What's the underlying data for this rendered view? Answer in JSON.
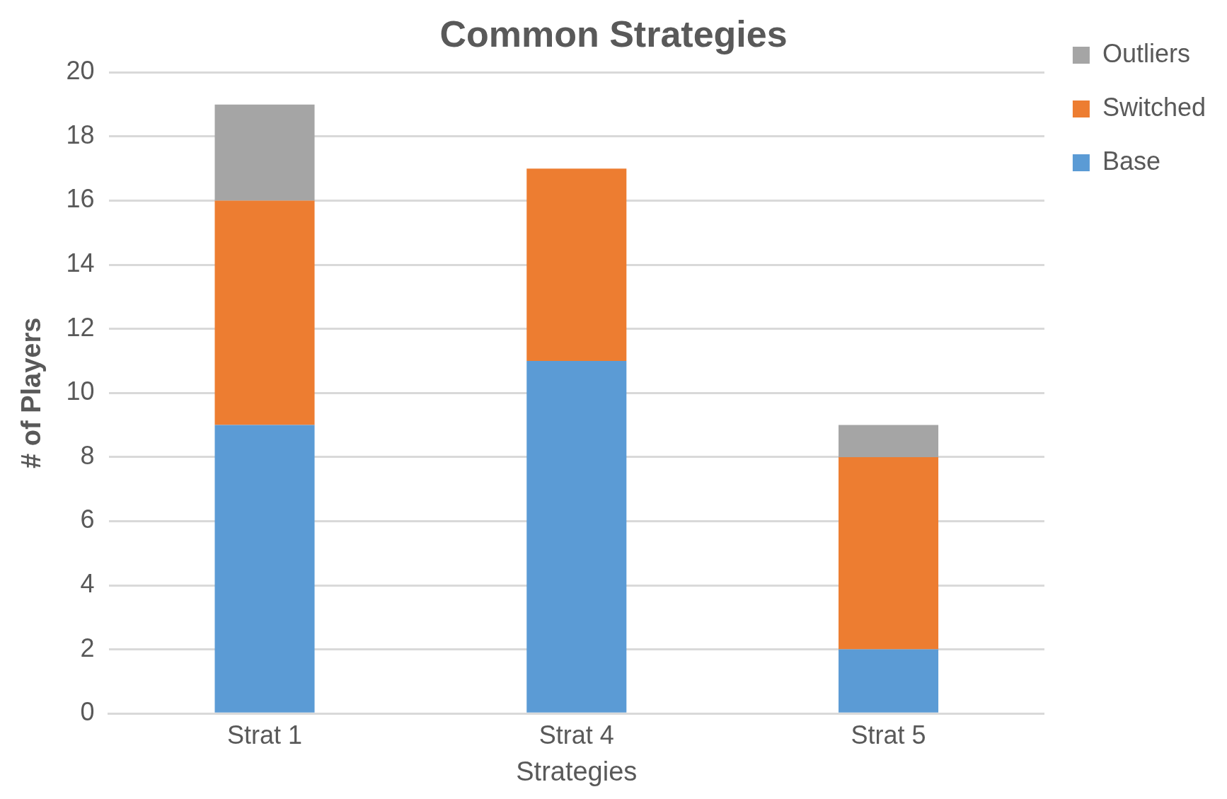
{
  "chart_data": {
    "type": "bar",
    "title": "Common Strategies",
    "xlabel": "Strategies",
    "ylabel": "# of Players",
    "categories": [
      "Strat 1",
      "Strat 4",
      "Strat 5"
    ],
    "series": [
      {
        "name": "Base",
        "color": "#5b9bd5",
        "values": [
          9,
          11,
          2
        ]
      },
      {
        "name": "Switched",
        "color": "#ed7d31",
        "values": [
          7,
          6,
          6
        ]
      },
      {
        "name": "Outliers",
        "color": "#a5a5a5",
        "values": [
          3,
          null,
          1
        ]
      }
    ],
    "stacked": true,
    "ylim": [
      0,
      20
    ],
    "yticks": [
      0,
      2,
      4,
      6,
      8,
      10,
      12,
      14,
      16,
      18,
      20
    ],
    "grid": "y",
    "legend": "right"
  }
}
